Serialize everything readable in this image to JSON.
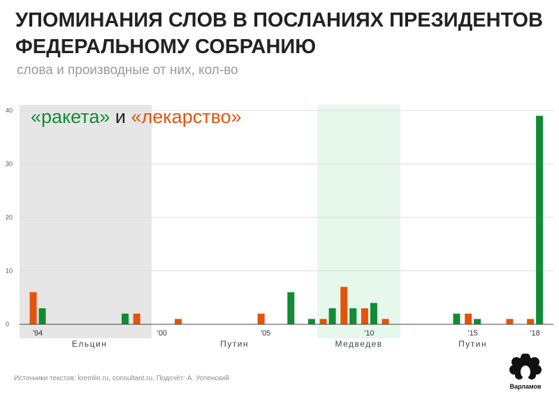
{
  "header": {
    "title_line1": "УПОМИНАНИЯ СЛОВ В ПОСЛАНИЯХ ПРЕЗИДЕНТОВ",
    "title_line2": "ФЕДЕРАЛЬНОМУ СОБРАНИЮ",
    "subtitle": "слова и производные от них, кол-во"
  },
  "legend": {
    "raketa": "«ракета»",
    "conj": " и ",
    "lekarstvo": "«лекарство»"
  },
  "footer": {
    "source": "Источники текстов: kremlin.ru, consultant.ru. Подсчёт: А. Успенский",
    "logo_text": "Варламов"
  },
  "colors": {
    "raketa": "#138a36",
    "lekarstvo": "#e4530c",
    "yeltsin_band": "#e6e6e6",
    "medvedev_band": "#e6f7ec",
    "grid": "#dddddd",
    "axis": "#444444"
  },
  "chart_data": {
    "type": "bar",
    "x": [
      1994,
      1995,
      1996,
      1997,
      1998,
      1999,
      2000,
      2001,
      2002,
      2003,
      2004,
      2005,
      2006,
      2007,
      2008,
      2009,
      2010,
      2011,
      2012,
      2013,
      2014,
      2015,
      2016,
      2017,
      2018
    ],
    "series": [
      {
        "name": "«ракета»",
        "values": [
          3,
          0,
          0,
          0,
          2,
          0,
          0,
          0,
          0,
          0,
          0,
          0,
          6,
          1,
          3,
          3,
          4,
          0,
          0,
          0,
          2,
          1,
          0,
          0,
          39
        ]
      },
      {
        "name": "«лекарство»",
        "values": [
          6,
          0,
          0,
          0,
          0,
          2,
          0,
          1,
          0,
          0,
          0,
          2,
          0,
          0,
          1,
          7,
          3,
          1,
          0,
          0,
          0,
          2,
          0,
          1,
          1
        ]
      }
    ],
    "ylim": [
      0,
      40
    ],
    "yticks": [
      0,
      10,
      20,
      30,
      40
    ],
    "ytick_labels": [
      "0",
      "10",
      "20",
      "30",
      "40"
    ],
    "xtick_labels": [
      {
        "year": 1994,
        "label": "'94"
      },
      {
        "year": 2000,
        "label": "'00"
      },
      {
        "year": 2005,
        "label": "'05"
      },
      {
        "year": 2010,
        "label": "'10"
      },
      {
        "year": 2015,
        "label": "'15"
      },
      {
        "year": 2018,
        "label": "'18"
      }
    ],
    "periods": [
      {
        "label": "Ельцин",
        "from": 1994,
        "to": 1999,
        "shaded": true
      },
      {
        "label": "Путин",
        "from": 2000,
        "to": 2007,
        "shaded": false
      },
      {
        "label": "Медведев",
        "from": 2008,
        "to": 2011,
        "shaded": true
      },
      {
        "label": "Путин",
        "from": 2012,
        "to": 2018,
        "shaded": false
      }
    ],
    "grid": true
  }
}
